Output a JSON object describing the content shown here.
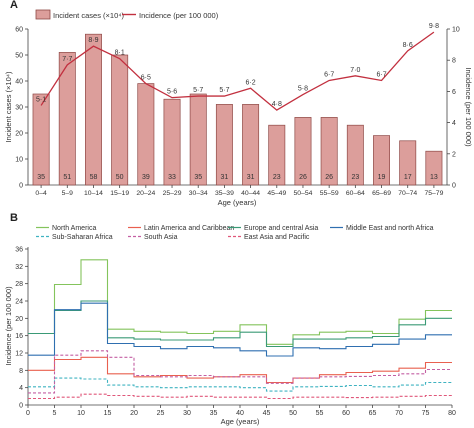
{
  "chart_data": [
    {
      "panel": "A",
      "type": "bar",
      "categories": [
        "0–4",
        "5–9",
        "10–14",
        "15–19",
        "20–24",
        "25–29",
        "30–34",
        "35–39",
        "40–44",
        "45–49",
        "50–54",
        "55–59",
        "60–64",
        "65–69",
        "70–74",
        "75–79"
      ],
      "series": [
        {
          "name": "Incident cases (×10⁴)",
          "type": "bar",
          "values": [
            35,
            51,
            58,
            50,
            39,
            33,
            35,
            31,
            31,
            23,
            26,
            26,
            23,
            19,
            17,
            13
          ],
          "color": "#dc9e9b",
          "stroke": "#8e4946"
        },
        {
          "name": "Incidence (per 100 000)",
          "type": "line",
          "values": [
            5.1,
            7.7,
            8.9,
            8.1,
            6.5,
            5.6,
            5.7,
            5.7,
            6.2,
            4.8,
            5.8,
            6.7,
            7.0,
            6.7,
            8.6,
            9.8
          ],
          "labels": [
            "5·1",
            "7·7",
            "8·9",
            "8·1",
            "6·5",
            "5·6",
            "5·7",
            "5·7",
            "6·2",
            "4·8",
            "5·8",
            "6·7",
            "7·0",
            "6·7",
            "8·6",
            "9·8"
          ],
          "color": "#c2303f"
        }
      ],
      "xlabel": "Age (years)",
      "ylabel": "Incident cases (×10⁴)",
      "y2label": "Incidence (per 100 000)",
      "ylim": [
        0,
        60
      ],
      "y2lim": [
        0,
        10
      ],
      "yticks": [
        "0",
        "10",
        "20",
        "30",
        "40",
        "50",
        "60"
      ],
      "y2ticks": [
        "0",
        "2",
        "4",
        "6",
        "8",
        "10"
      ],
      "legend": "top-left"
    },
    {
      "panel": "B",
      "type": "line",
      "xlabel": "Age (years)",
      "ylabel": "Incidence (per 100 000)",
      "xlim": [
        0,
        80
      ],
      "ylim": [
        0,
        36
      ],
      "xticks": [
        "0",
        "5",
        "10",
        "15",
        "20",
        "25",
        "30",
        "35",
        "40",
        "45",
        "50",
        "55",
        "60",
        "65",
        "70",
        "75",
        "80"
      ],
      "yticks": [
        "0",
        "4",
        "8",
        "12",
        "16",
        "20",
        "24",
        "28",
        "32",
        "36"
      ],
      "bin_edges": [
        0,
        5,
        10,
        15,
        20,
        25,
        30,
        35,
        40,
        45,
        50,
        55,
        60,
        65,
        70,
        75,
        80
      ],
      "series": [
        {
          "name": "North America",
          "color": "#84c45c",
          "dash": "",
          "values": [
            16.5,
            27.8,
            33.5,
            17.5,
            17.0,
            16.8,
            16.5,
            17.0,
            18.5,
            14.0,
            16.2,
            16.8,
            17.0,
            16.5,
            19.8,
            21.8
          ]
        },
        {
          "name": "Latin America and Caribbean",
          "color": "#e9604f",
          "dash": "",
          "values": [
            8.0,
            10.5,
            11.0,
            7.2,
            6.5,
            6.8,
            6.2,
            6.5,
            7.0,
            5.2,
            6.2,
            7.0,
            7.5,
            7.8,
            8.5,
            9.8
          ]
        },
        {
          "name": "Europe and central Asia",
          "color": "#3a9a76",
          "dash": "",
          "values": [
            16.5,
            21.8,
            24.0,
            15.5,
            15.2,
            15.0,
            15.0,
            15.5,
            16.8,
            13.5,
            15.2,
            15.2,
            15.5,
            15.8,
            18.5,
            20.0
          ]
        },
        {
          "name": "Middle East and north Africa",
          "color": "#2f6fb0",
          "dash": "",
          "values": [
            11.5,
            22.0,
            23.5,
            14.2,
            13.5,
            13.0,
            13.5,
            13.2,
            12.5,
            11.3,
            13.2,
            13.0,
            13.5,
            14.0,
            15.2,
            16.2
          ]
        },
        {
          "name": "Sub-Saharan Africa",
          "color": "#3fb3c1",
          "dash": "3,2",
          "values": [
            4.2,
            6.2,
            6.0,
            4.6,
            4.2,
            4.0,
            4.2,
            4.2,
            4.0,
            3.2,
            4.2,
            4.3,
            4.5,
            4.2,
            4.6,
            5.2
          ]
        },
        {
          "name": "South Asia",
          "color": "#c45fa3",
          "dash": "3,2",
          "values": [
            2.8,
            11.5,
            12.5,
            11.0,
            6.8,
            6.5,
            6.8,
            6.5,
            6.5,
            5.0,
            6.2,
            6.5,
            6.6,
            6.8,
            7.2,
            8.2
          ]
        },
        {
          "name": "East Asia and Pacific",
          "color": "#e0577a",
          "dash": "3,2",
          "values": [
            1.5,
            1.8,
            2.5,
            2.2,
            2.0,
            1.8,
            2.0,
            1.8,
            1.8,
            1.5,
            1.8,
            1.8,
            1.7,
            1.8,
            2.0,
            2.2
          ]
        }
      ],
      "legend": "top"
    }
  ],
  "panelA": {
    "label": "A"
  },
  "panelB": {
    "label": "B"
  }
}
